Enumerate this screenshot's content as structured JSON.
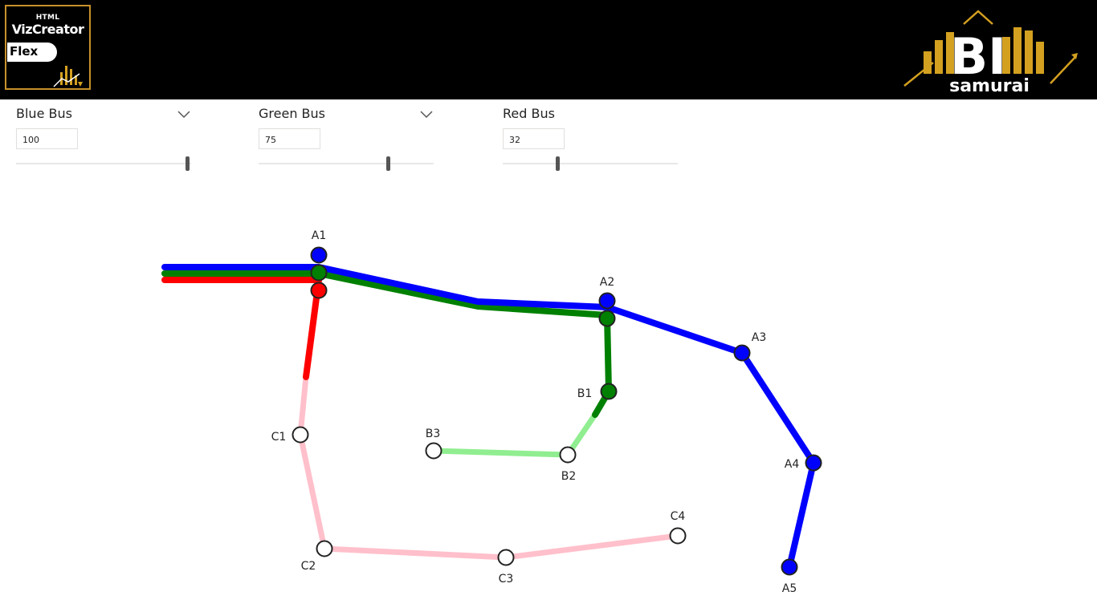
{
  "header": {
    "left_logo": {
      "line1": "HTML",
      "line2": "VizCreator",
      "line3": "Flex"
    },
    "right_logo": {
      "text": "BI",
      "subtext": "samurai",
      "accent_color": "#d4a020"
    }
  },
  "controls": [
    {
      "label": "Blue Bus",
      "value": "100",
      "level_fraction": 1.0,
      "has_dropdown": true
    },
    {
      "label": "Green Bus",
      "value": "75",
      "level_fraction": 0.75,
      "has_dropdown": true
    },
    {
      "label": "Red Bus",
      "value": "32",
      "level_fraction": 0.32,
      "has_dropdown": false
    }
  ],
  "colors": {
    "blue": "#0000ff",
    "green": "#008000",
    "red": "#ff0000",
    "light_green": "#90ee90",
    "pink": "#ffc0cb",
    "stop_outline": "#222222",
    "unvisited_stop_fill": "#ffffff"
  },
  "stops": {
    "A1": "A1",
    "A2": "A2",
    "A3": "A3",
    "A4": "A4",
    "A5": "A5",
    "B1": "B1",
    "B2": "B2",
    "B3": "B3",
    "C1": "C1",
    "C2": "C2",
    "C3": "C3",
    "C4": "C4"
  }
}
